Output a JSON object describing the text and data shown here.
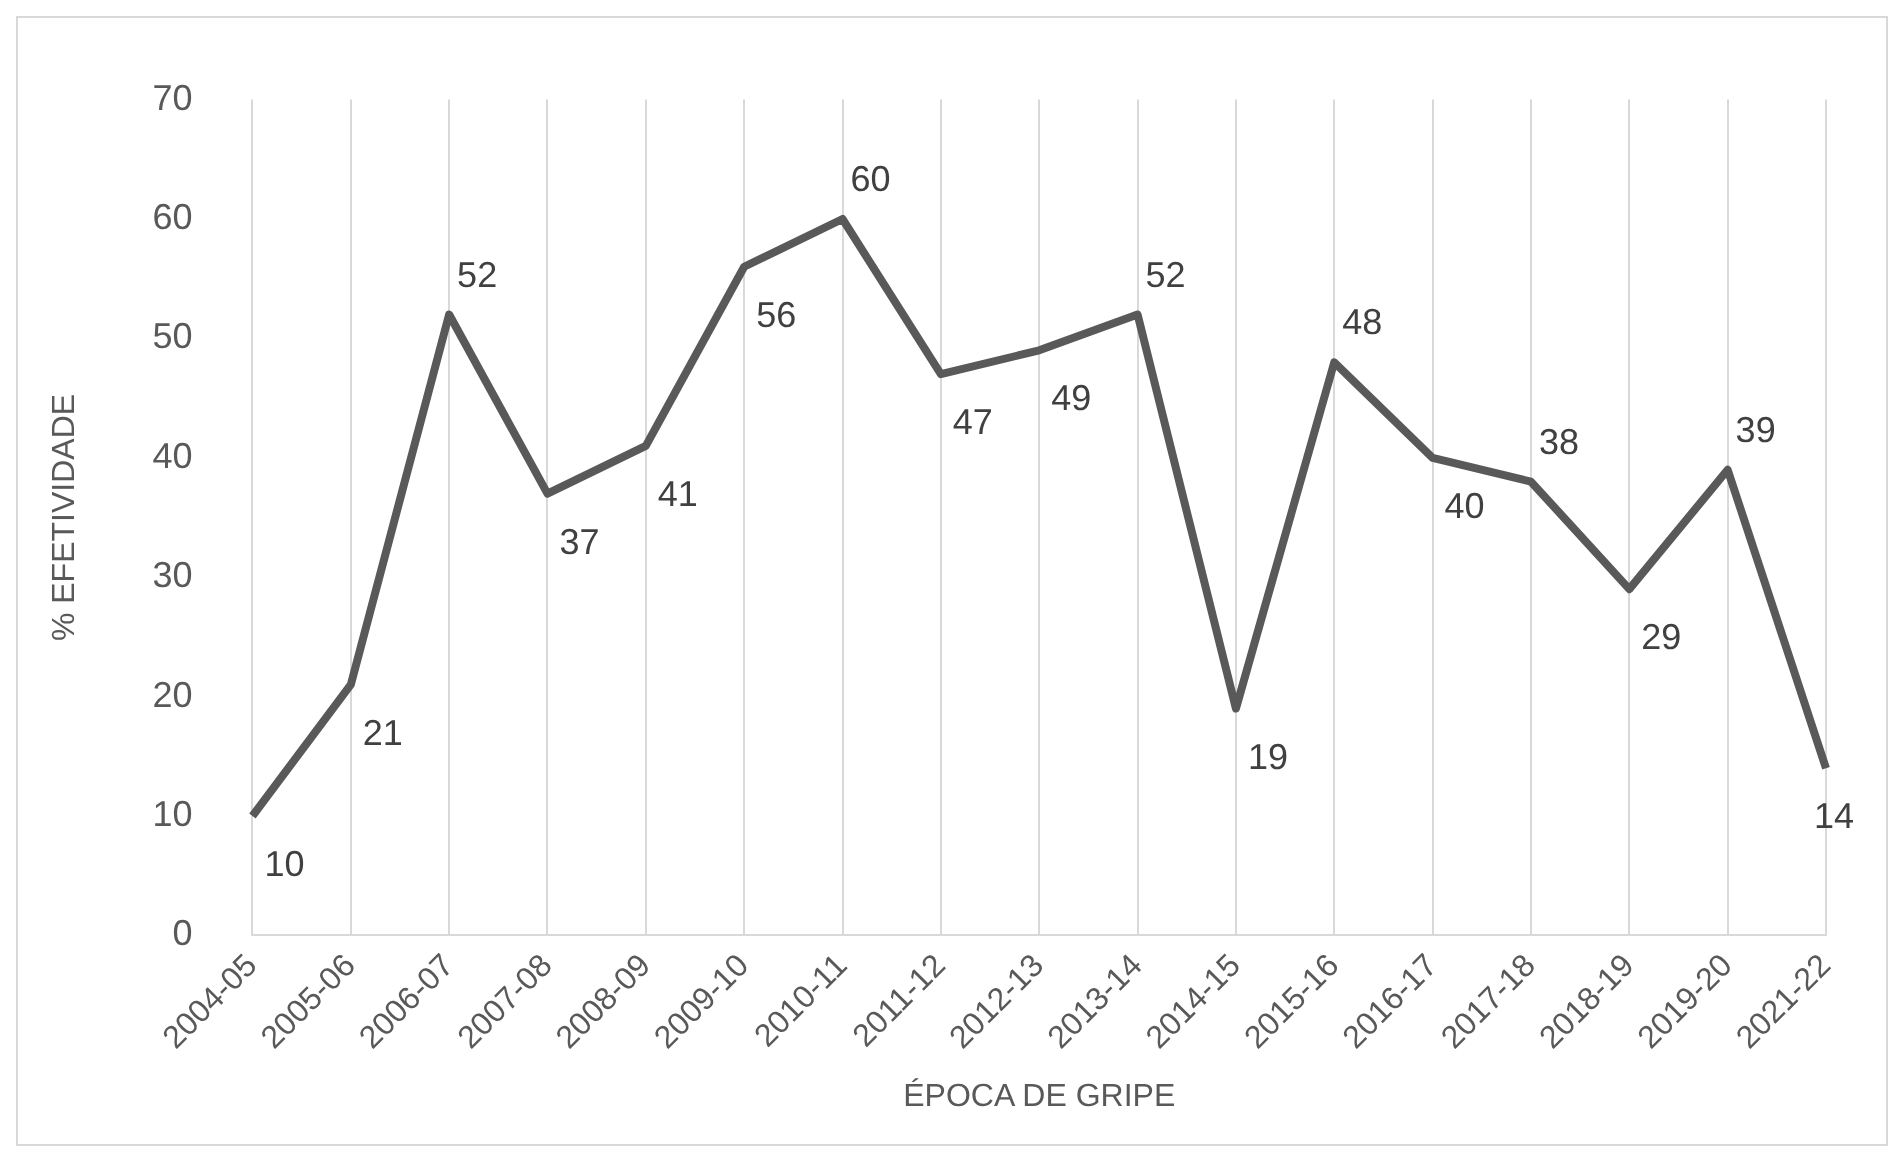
{
  "chart_data": {
    "type": "line",
    "xlabel": "ÉPOCA DE GRIPE",
    "ylabel": "% EFETIVIDADE",
    "categories": [
      "2004-05",
      "2005-06",
      "2006-07",
      "2007-08",
      "2008-09",
      "2009-10",
      "2010-11",
      "2011-12",
      "2012-13",
      "2013-14",
      "2014-15",
      "2015-16",
      "2016-17",
      "2017-18",
      "2018-19",
      "2019-20",
      "2021-22"
    ],
    "series": [
      {
        "color": "#595959",
        "values": [
          10,
          21,
          52,
          37,
          41,
          56,
          60,
          47,
          49,
          52,
          19,
          48,
          40,
          38,
          29,
          39,
          14
        ]
      }
    ],
    "ylim": [
      0,
      70
    ],
    "yticks": [
      0,
      10,
      20,
      30,
      40,
      50,
      60,
      70
    ],
    "grid": "x",
    "legend": false,
    "marker": "none",
    "line_style": "solid",
    "data_labels": true
  }
}
